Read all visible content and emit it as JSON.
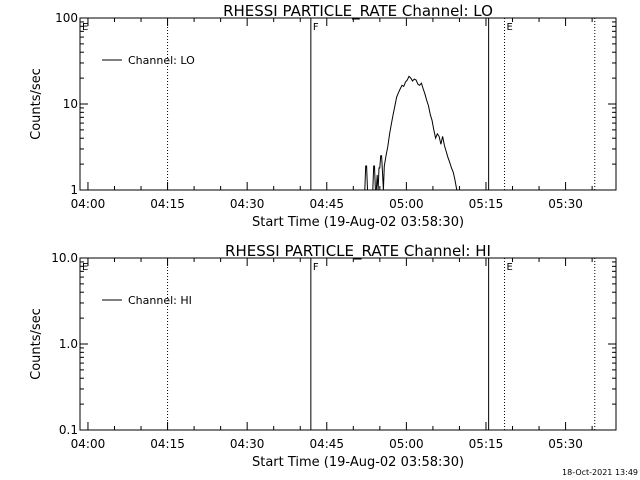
{
  "chart_data": [
    {
      "type": "line",
      "title": "RHESSI PARTICLE_RATE Channel: LO",
      "xlabel": "Start Time (19-Aug-02 03:58:30)",
      "ylabel": "Counts/sec",
      "yscale": "log",
      "ylim": [
        1,
        100
      ],
      "xlim": [
        "03:58:30",
        "05:39:30"
      ],
      "x_ticks": [
        "04:00",
        "04:15",
        "04:30",
        "04:45",
        "05:00",
        "05:15",
        "05:30"
      ],
      "y_ticks": [
        "1",
        "10",
        "100"
      ],
      "legend": {
        "placement": "top-left",
        "entries": [
          "Channel: LO"
        ]
      },
      "grid": false,
      "markers": [
        {
          "label": "E",
          "time": "03:58:30",
          "style": "solid"
        },
        {
          "time": "04:15:00",
          "style": "dotted"
        },
        {
          "label": "F",
          "time": "04:42:00",
          "style": "solid"
        },
        {
          "time": "05:15:30",
          "style": "solid"
        },
        {
          "label": "E",
          "time": "05:18:30",
          "style": "dotted"
        },
        {
          "time": "05:35:30",
          "style": "dotted"
        }
      ],
      "series": [
        {
          "name": "Channel: LO",
          "segments": [
            {
              "x": [
                "04:52:10",
                "04:52:20",
                "04:52:30",
                "04:52:40"
              ],
              "y": [
                1,
                1.9,
                1.9,
                1
              ]
            },
            {
              "x": [
                "04:53:40",
                "04:53:50",
                "04:54:00",
                "04:54:10"
              ],
              "y": [
                1,
                1.9,
                1.9,
                1
              ]
            },
            {
              "x": [
                "04:54:20",
                "04:54:30",
                "04:54:40",
                "04:54:50",
                "04:55:00",
                "04:55:10",
                "04:55:20",
                "04:55:30",
                "04:55:40",
                "04:55:50",
                "04:56:10",
                "04:56:30",
                "04:56:50",
                "04:57:10",
                "04:57:30",
                "04:57:50",
                "04:58:10",
                "04:58:30",
                "04:58:50",
                "04:59:10",
                "04:59:30",
                "04:59:50",
                "05:00:10",
                "05:00:30",
                "05:00:50",
                "05:01:10",
                "05:01:30",
                "05:01:50",
                "05:02:10",
                "05:02:30",
                "05:02:50",
                "05:03:10",
                "05:03:30",
                "05:03:50",
                "05:04:10",
                "05:04:30",
                "05:04:50",
                "05:05:10",
                "05:05:30",
                "05:05:50",
                "05:06:10",
                "05:06:30",
                "05:06:50",
                "05:07:10",
                "05:07:30",
                "05:07:50",
                "05:08:10",
                "05:08:30",
                "05:08:50",
                "05:09:10",
                "05:09:30"
              ],
              "y": [
                1,
                1.5,
                1,
                1.8,
                1.8,
                2.5,
                2.5,
                1.6,
                1,
                1.9,
                2.5,
                3.2,
                4.5,
                5.8,
                7.5,
                9.5,
                12,
                13.5,
                15,
                16.5,
                16,
                18,
                19,
                21,
                20,
                18.5,
                19.5,
                19,
                17,
                16.5,
                17.5,
                15,
                13,
                11,
                9.5,
                7.5,
                6.5,
                5,
                4,
                4.5,
                4.2,
                3.4,
                4.2,
                3.3,
                2.8,
                2.4,
                2.1,
                1.8,
                1.6,
                1.3,
                1
              ]
            }
          ]
        }
      ]
    },
    {
      "type": "line",
      "title": "RHESSI PARTICLE_RATE Channel: HI",
      "xlabel": "Start Time (19-Aug-02 03:58:30)",
      "ylabel": "Counts/sec",
      "yscale": "log",
      "ylim": [
        0.1,
        10
      ],
      "xlim": [
        "03:58:30",
        "05:39:30"
      ],
      "x_ticks": [
        "04:00",
        "04:15",
        "04:30",
        "04:45",
        "05:00",
        "05:15",
        "05:30"
      ],
      "y_ticks": [
        "0.1",
        "1.0",
        "10.0"
      ],
      "legend": {
        "placement": "top-left",
        "entries": [
          "Channel: HI"
        ]
      },
      "grid": false,
      "markers": [
        {
          "label": "E",
          "time": "03:58:30",
          "style": "solid"
        },
        {
          "time": "04:15:00",
          "style": "dotted"
        },
        {
          "label": "F",
          "time": "04:42:00",
          "style": "solid"
        },
        {
          "time": "05:15:30",
          "style": "solid"
        },
        {
          "label": "E",
          "time": "05:18:30",
          "style": "dotted"
        },
        {
          "time": "05:35:30",
          "style": "dotted"
        }
      ],
      "series": [
        {
          "name": "Channel: HI",
          "segments": []
        }
      ]
    }
  ],
  "footer": {
    "timestamp": "18-Oct-2021 13:49"
  }
}
